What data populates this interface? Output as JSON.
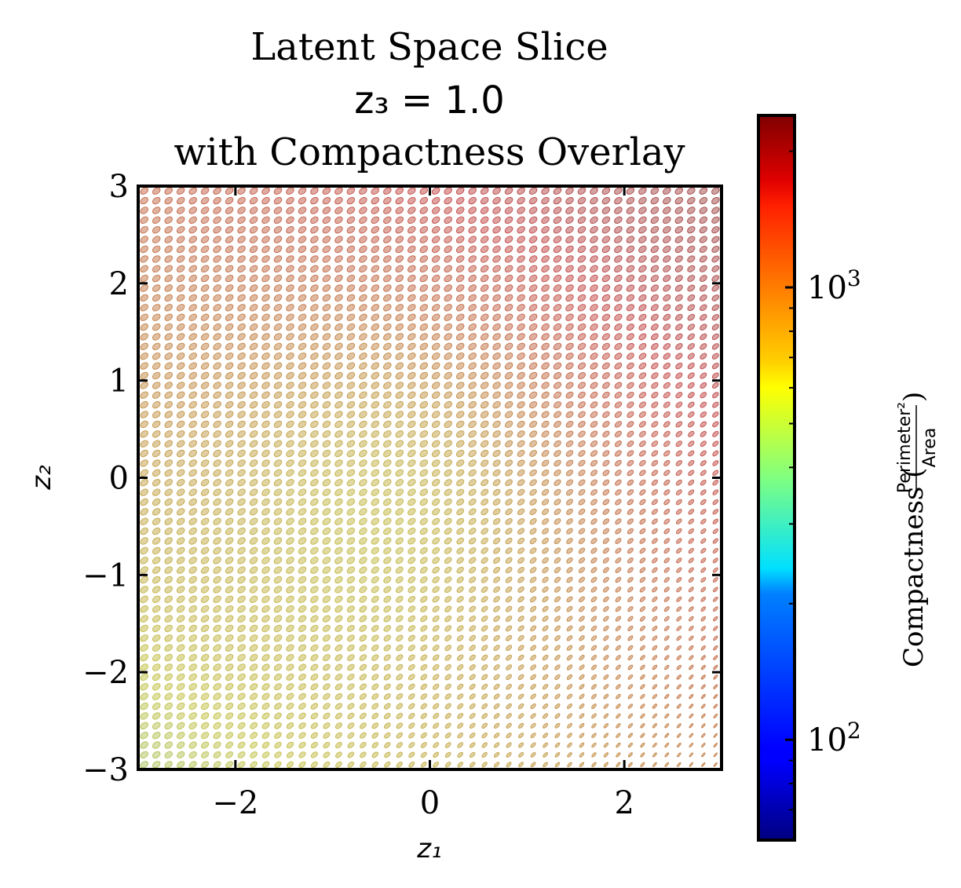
{
  "chart_data": {
    "type": "heatmap",
    "title_lines": [
      "Latent Space Slice",
      "z₃ = 1.0",
      "with Compactness Overlay"
    ],
    "xlabel": "z₁",
    "ylabel": "z₂",
    "xlim": [
      -3,
      3
    ],
    "ylim": [
      -3,
      3
    ],
    "x_ticks": [
      -2,
      0,
      2
    ],
    "x_tick_labels": [
      "−2",
      "0",
      "2"
    ],
    "y_ticks": [
      -3,
      -2,
      -1,
      0,
      1,
      2,
      3
    ],
    "y_tick_labels": [
      "−3",
      "−2",
      "−1",
      "0",
      "1",
      "2",
      "3"
    ],
    "grid": false,
    "glyph_grid": {
      "nx": 48,
      "ny": 60
    },
    "colorbar": {
      "label_prefix": "Compactness (",
      "label_numerator": "Perimeter²",
      "label_denominator": "Area",
      "label_suffix": ")",
      "scale": "log",
      "colormap": "jet",
      "range": [
        60,
        2400
      ],
      "major_ticks": [
        100,
        1000
      ],
      "major_tick_base": "10",
      "major_tick_exps": [
        "2",
        "3"
      ],
      "minor_ticks": [
        60,
        70,
        80,
        90,
        200,
        300,
        400,
        500,
        600,
        700,
        800,
        900,
        2000
      ]
    },
    "compactness_field_description_values": {
      "center": 350,
      "top_right": 2000,
      "bottom_left": 500,
      "bottom_right": 1000,
      "top_left": 1200
    }
  }
}
